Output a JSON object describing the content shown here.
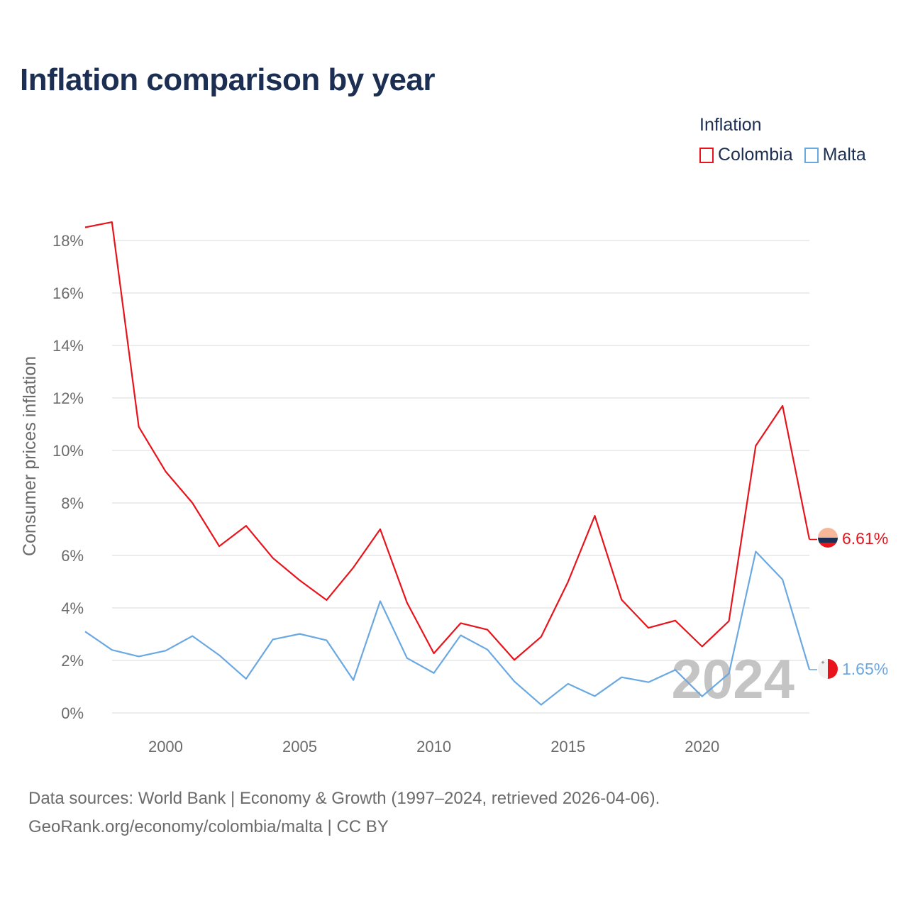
{
  "title": "Inflation comparison by year",
  "legend": {
    "title": "Inflation",
    "items": [
      {
        "label": "Colombia",
        "color": "#e8141c"
      },
      {
        "label": "Malta",
        "color": "#6aa8e2"
      }
    ]
  },
  "chart_data": {
    "type": "line",
    "title": "Inflation comparison by year",
    "xlabel": "",
    "ylabel": "Consumer prices inflation",
    "xlim": [
      1997,
      2024
    ],
    "ylim": [
      0,
      18
    ],
    "yticks": [
      0,
      2,
      4,
      6,
      8,
      10,
      12,
      14,
      16,
      18
    ],
    "ytick_labels": [
      "0%",
      "2%",
      "4%",
      "6%",
      "8%",
      "10%",
      "12%",
      "14%",
      "16%",
      "18%"
    ],
    "xticks": [
      2000,
      2005,
      2010,
      2015,
      2020
    ],
    "xtick_labels": [
      "2000",
      "2005",
      "2010",
      "2015",
      "2020"
    ],
    "grid": true,
    "legend_position": "top-right",
    "year_watermark": "2024",
    "x": [
      1997,
      1998,
      1999,
      2000,
      2001,
      2002,
      2003,
      2004,
      2005,
      2006,
      2007,
      2008,
      2009,
      2010,
      2011,
      2012,
      2013,
      2014,
      2015,
      2016,
      2017,
      2018,
      2019,
      2020,
      2021,
      2022,
      2023,
      2024
    ],
    "series": [
      {
        "name": "Colombia",
        "color": "#e8141c",
        "end_label": "6.61%",
        "values": [
          18.5,
          18.7,
          10.9,
          9.2,
          8.0,
          6.35,
          7.13,
          5.9,
          5.05,
          4.3,
          5.54,
          7.0,
          4.2,
          2.27,
          3.42,
          3.17,
          2.02,
          2.9,
          4.99,
          7.51,
          4.31,
          3.24,
          3.52,
          2.53,
          3.5,
          10.18,
          11.7,
          6.61
        ]
      },
      {
        "name": "Malta",
        "color": "#6aa8e2",
        "end_label": "1.65%",
        "values": [
          3.1,
          2.4,
          2.15,
          2.37,
          2.93,
          2.2,
          1.3,
          2.8,
          3.01,
          2.77,
          1.25,
          4.26,
          2.09,
          1.52,
          2.96,
          2.41,
          1.2,
          0.31,
          1.11,
          0.64,
          1.36,
          1.17,
          1.64,
          0.63,
          1.5,
          6.15,
          5.08,
          1.65
        ]
      }
    ]
  },
  "footer": {
    "line1": "Data sources: World Bank | Economy & Growth (1997–2024, retrieved 2026-04-06).",
    "line2": "GeoRank.org/economy/colombia/malta | CC BY"
  }
}
